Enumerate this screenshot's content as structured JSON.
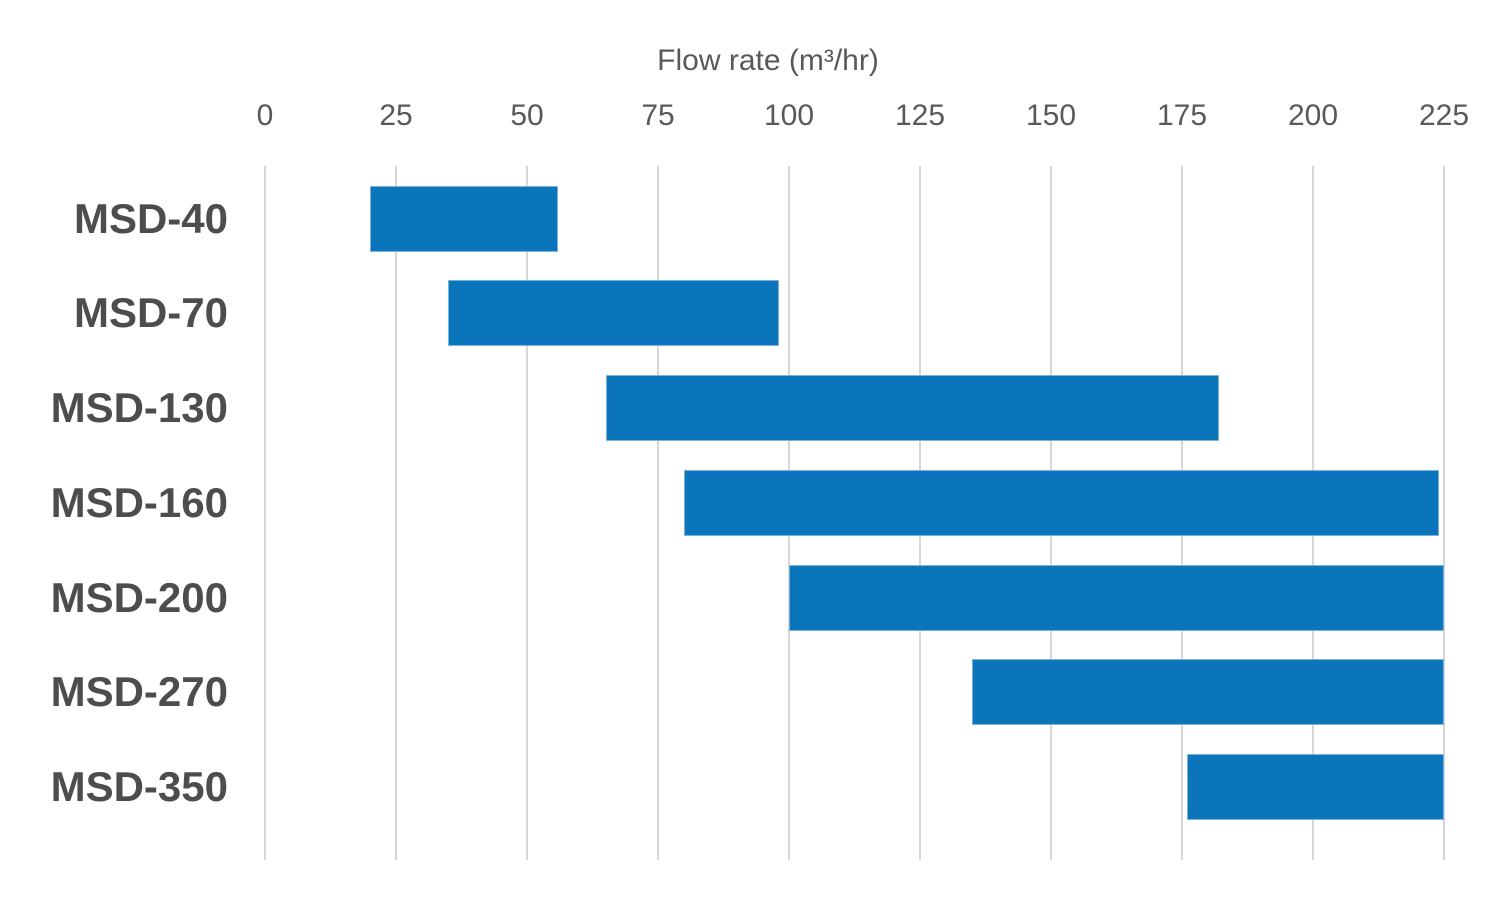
{
  "chart_data": {
    "type": "bar",
    "subtype": "horizontal-range-bars",
    "title": "Flow rate (m³/hr)",
    "title_position": "top",
    "xlabel": "Flow rate (m³/hr)",
    "ylabel": "",
    "categories": [
      "MSD-40",
      "MSD-70",
      "MSD-130",
      "MSD-160",
      "MSD-200",
      "MSD-270",
      "MSD-350"
    ],
    "series": [
      {
        "name": "Flow rate range (m³/hr)",
        "ranges": [
          {
            "category": "MSD-40",
            "min": 20,
            "max": 56
          },
          {
            "category": "MSD-70",
            "min": 35,
            "max": 98
          },
          {
            "category": "MSD-130",
            "min": 65,
            "max": 182
          },
          {
            "category": "MSD-160",
            "min": 80,
            "max": 224
          },
          {
            "category": "MSD-200",
            "min": 100,
            "max": 225
          },
          {
            "category": "MSD-270",
            "min": 135,
            "max": 225
          },
          {
            "category": "MSD-350",
            "min": 176,
            "max": 225
          }
        ]
      }
    ],
    "x_ticks": [
      0,
      25,
      50,
      75,
      100,
      125,
      150,
      175,
      200,
      225
    ],
    "xlim": [
      0,
      225
    ],
    "grid": "vertical-only",
    "legend": "none",
    "colors": {
      "bar": "#0b75bb",
      "gridline": "#d6d6d6",
      "axis_text": "#595959",
      "category_text": "#4d4d4d",
      "background": "#ffffff"
    }
  }
}
